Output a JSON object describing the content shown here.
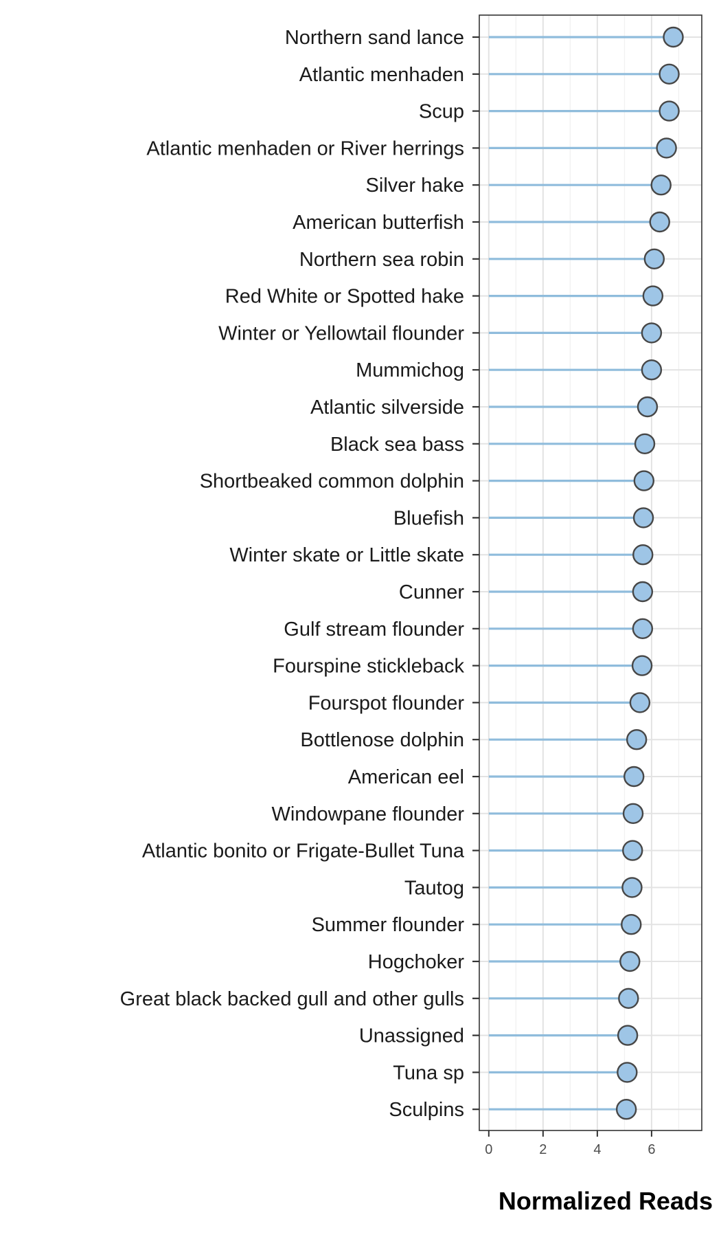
{
  "chart_data": {
    "type": "lollipop",
    "orientation": "horizontal",
    "categories": [
      "Northern sand lance",
      "Atlantic menhaden",
      "Scup",
      "Atlantic menhaden or River herrings",
      "Silver hake",
      "American butterfish",
      "Northern sea robin",
      "Red White or Spotted hake",
      "Winter or Yellowtail flounder",
      "Mummichog",
      "Atlantic silverside",
      "Black sea bass",
      "Shortbeaked common dolphin",
      "Bluefish",
      "Winter skate or Little skate",
      "Cunner",
      "Gulf stream flounder",
      "Fourspine stickleback",
      "Fourspot flounder",
      "Bottlenose dolphin",
      "American eel",
      "Windowpane flounder",
      "Atlantic bonito or Frigate-Bullet Tuna",
      "Tautog",
      "Summer flounder",
      "Hogchoker",
      "Great black backed gull and other gulls",
      "Unassigned",
      "Tuna sp",
      "Sculpins"
    ],
    "values": [
      6.8,
      6.65,
      6.65,
      6.55,
      6.35,
      6.3,
      6.1,
      6.05,
      6.0,
      6.0,
      5.85,
      5.75,
      5.72,
      5.7,
      5.68,
      5.67,
      5.67,
      5.65,
      5.57,
      5.45,
      5.35,
      5.32,
      5.3,
      5.28,
      5.25,
      5.2,
      5.15,
      5.12,
      5.1,
      5.07
    ],
    "xlabel": "Normalized Reads",
    "ylabel": "",
    "title": "",
    "xlim": [
      -0.35,
      7.85
    ],
    "xticks": [
      0,
      2,
      4,
      6
    ],
    "grid": true,
    "colors": {
      "stem": "#8fbcdc",
      "point_fill": "#9ec5e6",
      "point_stroke": "#474747",
      "grid_major": "#e3e3e3",
      "grid_minor": "#f1f1f1",
      "panel_border": "#333333"
    }
  }
}
